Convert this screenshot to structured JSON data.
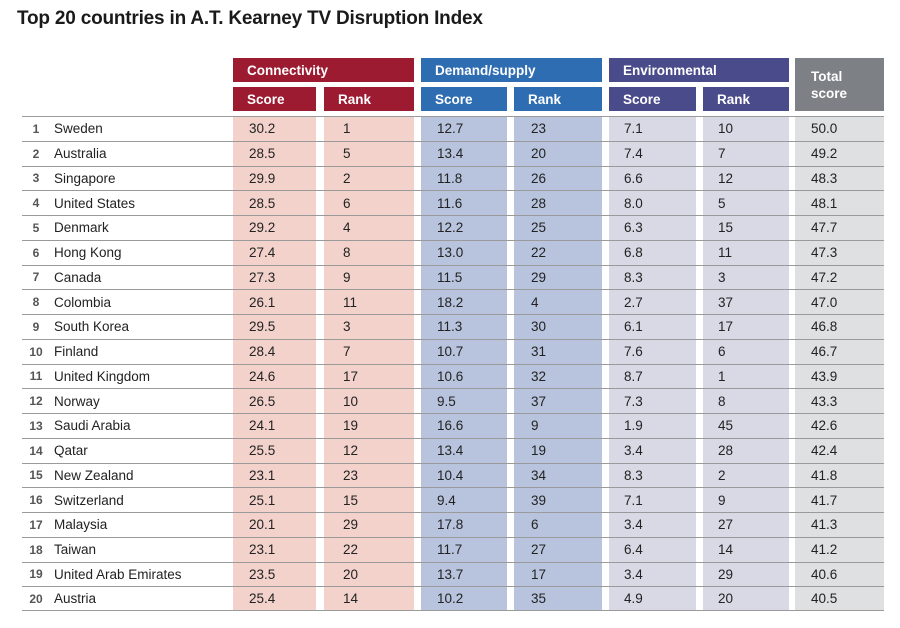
{
  "title": "Top 20 countries in A.T. Kearney TV Disruption Index",
  "headers": {
    "connectivity": "Connectivity",
    "demand_supply": "Demand/supply",
    "environmental": "Environmental",
    "score": "Score",
    "rank": "Rank",
    "total_line1": "Total",
    "total_line2": "score"
  },
  "colors": {
    "connectivity": "#9c1b30",
    "demand_supply": "#2f6db3",
    "environmental": "#4a4b8a",
    "total": "#7d8186"
  },
  "rows": [
    {
      "rank": "1",
      "country": "Sweden",
      "conn_score": "30.2",
      "conn_rank": "1",
      "dem_score": "12.7",
      "dem_rank": "23",
      "env_score": "7.1",
      "env_rank": "10",
      "total": "50.0"
    },
    {
      "rank": "2",
      "country": "Australia",
      "conn_score": "28.5",
      "conn_rank": "5",
      "dem_score": "13.4",
      "dem_rank": "20",
      "env_score": "7.4",
      "env_rank": "7",
      "total": "49.2"
    },
    {
      "rank": "3",
      "country": "Singapore",
      "conn_score": "29.9",
      "conn_rank": "2",
      "dem_score": "11.8",
      "dem_rank": "26",
      "env_score": "6.6",
      "env_rank": "12",
      "total": "48.3"
    },
    {
      "rank": "4",
      "country": "United States",
      "conn_score": "28.5",
      "conn_rank": "6",
      "dem_score": "11.6",
      "dem_rank": "28",
      "env_score": "8.0",
      "env_rank": "5",
      "total": "48.1"
    },
    {
      "rank": "5",
      "country": "Denmark",
      "conn_score": "29.2",
      "conn_rank": "4",
      "dem_score": "12.2",
      "dem_rank": "25",
      "env_score": "6.3",
      "env_rank": "15",
      "total": "47.7"
    },
    {
      "rank": "6",
      "country": "Hong Kong",
      "conn_score": "27.4",
      "conn_rank": "8",
      "dem_score": "13.0",
      "dem_rank": "22",
      "env_score": "6.8",
      "env_rank": "11",
      "total": "47.3"
    },
    {
      "rank": "7",
      "country": "Canada",
      "conn_score": "27.3",
      "conn_rank": "9",
      "dem_score": "11.5",
      "dem_rank": "29",
      "env_score": "8.3",
      "env_rank": "3",
      "total": "47.2"
    },
    {
      "rank": "8",
      "country": "Colombia",
      "conn_score": "26.1",
      "conn_rank": "11",
      "dem_score": "18.2",
      "dem_rank": "4",
      "env_score": "2.7",
      "env_rank": "37",
      "total": "47.0"
    },
    {
      "rank": "9",
      "country": "South Korea",
      "conn_score": "29.5",
      "conn_rank": "3",
      "dem_score": "11.3",
      "dem_rank": "30",
      "env_score": "6.1",
      "env_rank": "17",
      "total": "46.8"
    },
    {
      "rank": "10",
      "country": "Finland",
      "conn_score": "28.4",
      "conn_rank": "7",
      "dem_score": "10.7",
      "dem_rank": "31",
      "env_score": "7.6",
      "env_rank": "6",
      "total": "46.7"
    },
    {
      "rank": "11",
      "country": "United Kingdom",
      "conn_score": "24.6",
      "conn_rank": "17",
      "dem_score": "10.6",
      "dem_rank": "32",
      "env_score": "8.7",
      "env_rank": "1",
      "total": "43.9"
    },
    {
      "rank": "12",
      "country": "Norway",
      "conn_score": "26.5",
      "conn_rank": "10",
      "dem_score": "9.5",
      "dem_rank": "37",
      "env_score": "7.3",
      "env_rank": "8",
      "total": "43.3"
    },
    {
      "rank": "13",
      "country": "Saudi Arabia",
      "conn_score": "24.1",
      "conn_rank": "19",
      "dem_score": "16.6",
      "dem_rank": "9",
      "env_score": "1.9",
      "env_rank": "45",
      "total": "42.6"
    },
    {
      "rank": "14",
      "country": "Qatar",
      "conn_score": "25.5",
      "conn_rank": "12",
      "dem_score": "13.4",
      "dem_rank": "19",
      "env_score": "3.4",
      "env_rank": "28",
      "total": "42.4"
    },
    {
      "rank": "15",
      "country": "New Zealand",
      "conn_score": "23.1",
      "conn_rank": "23",
      "dem_score": "10.4",
      "dem_rank": "34",
      "env_score": "8.3",
      "env_rank": "2",
      "total": "41.8"
    },
    {
      "rank": "16",
      "country": "Switzerland",
      "conn_score": "25.1",
      "conn_rank": "15",
      "dem_score": "9.4",
      "dem_rank": "39",
      "env_score": "7.1",
      "env_rank": "9",
      "total": "41.7"
    },
    {
      "rank": "17",
      "country": "Malaysia",
      "conn_score": "20.1",
      "conn_rank": "29",
      "dem_score": "17.8",
      "dem_rank": "6",
      "env_score": "3.4",
      "env_rank": "27",
      "total": "41.3"
    },
    {
      "rank": "18",
      "country": "Taiwan",
      "conn_score": "23.1",
      "conn_rank": "22",
      "dem_score": "11.7",
      "dem_rank": "27",
      "env_score": "6.4",
      "env_rank": "14",
      "total": "41.2"
    },
    {
      "rank": "19",
      "country": "United Arab Emirates",
      "conn_score": "23.5",
      "conn_rank": "20",
      "dem_score": "13.7",
      "dem_rank": "17",
      "env_score": "3.4",
      "env_rank": "29",
      "total": "40.6"
    },
    {
      "rank": "20",
      "country": "Austria",
      "conn_score": "25.4",
      "conn_rank": "14",
      "dem_score": "10.2",
      "dem_rank": "35",
      "env_score": "4.9",
      "env_rank": "20",
      "total": "40.5"
    }
  ]
}
